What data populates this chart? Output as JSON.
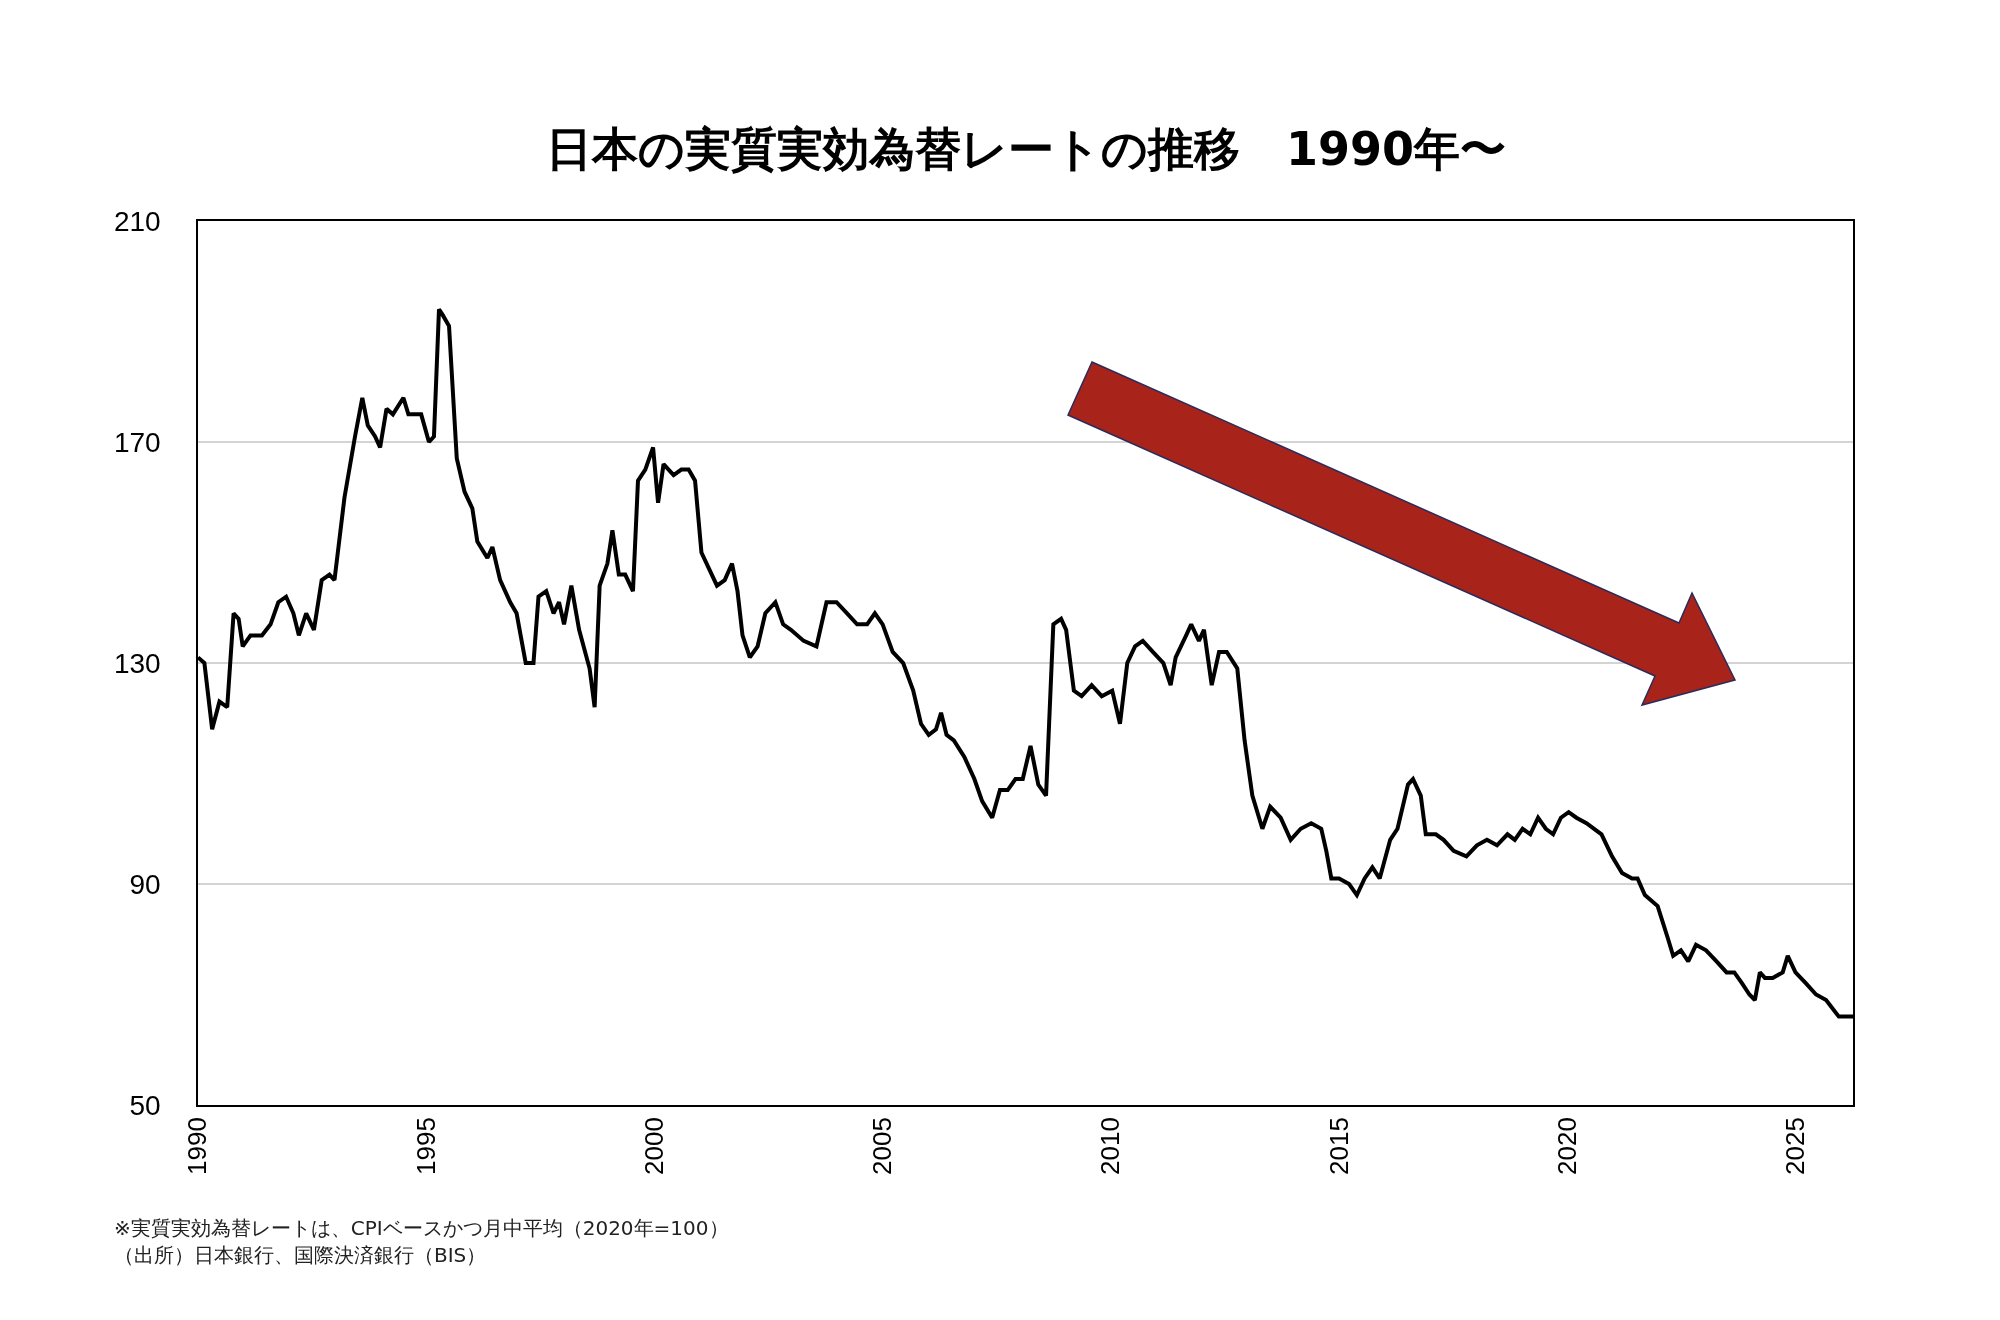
{
  "chart_data": {
    "type": "line",
    "title": "日本の実質実効為替レートの推移　1990年〜",
    "x": [
      1990.0,
      1990.14,
      1990.31,
      1990.47,
      1990.64,
      1990.78,
      1990.89,
      1990.98,
      1991.15,
      1991.4,
      1991.59,
      1991.76,
      1991.93,
      1992.09,
      1992.21,
      1992.37,
      1992.54,
      1992.71,
      1992.88,
      1992.99,
      1993.21,
      1993.44,
      1993.6,
      1993.72,
      1993.88,
      1993.99,
      1994.13,
      1994.27,
      1994.5,
      1994.61,
      1994.89,
      1995.06,
      1995.17,
      1995.28,
      1995.36,
      1995.5,
      1995.67,
      1995.84,
      1996.01,
      1996.12,
      1996.34,
      1996.45,
      1996.62,
      1996.84,
      1996.98,
      1997.18,
      1997.35,
      1997.46,
      1997.63,
      1997.79,
      1997.91,
      1998.02,
      1998.18,
      1998.35,
      1998.58,
      1998.69,
      1998.8,
      1998.97,
      1999.08,
      1999.22,
      1999.36,
      1999.53,
      1999.64,
      1999.8,
      1999.97,
      2000.08,
      2000.2,
      2000.42,
      2000.59,
      2000.75,
      2000.89,
      2001.03,
      2001.2,
      2001.37,
      2001.54,
      2001.7,
      2001.82,
      2001.93,
      2002.09,
      2002.26,
      2002.43,
      2002.65,
      2002.82,
      2002.99,
      2003.27,
      2003.55,
      2003.77,
      2003.99,
      2004.22,
      2004.44,
      2004.66,
      2004.83,
      2005.0,
      2005.22,
      2005.45,
      2005.67,
      2005.84,
      2006.01,
      2006.17,
      2006.28,
      2006.4,
      2006.56,
      2006.79,
      2007.01,
      2007.18,
      2007.4,
      2007.57,
      2007.74,
      2007.91,
      2008.07,
      2008.24,
      2008.41,
      2008.58,
      2008.74,
      2008.91,
      2009.02,
      2009.19,
      2009.36,
      2009.58,
      2009.8,
      2010.03,
      2010.2,
      2010.36,
      2010.53,
      2010.7,
      2010.92,
      2011.15,
      2011.31,
      2011.42,
      2011.65,
      2011.76,
      2011.93,
      2012.04,
      2012.21,
      2012.37,
      2012.54,
      2012.77,
      2012.93,
      2013.1,
      2013.32,
      2013.49,
      2013.72,
      2013.94,
      2014.16,
      2014.39,
      2014.61,
      2014.72,
      2014.83,
      2015.0,
      2015.22,
      2015.39,
      2015.56,
      2015.73,
      2015.89,
      2016.12,
      2016.28,
      2016.51,
      2016.62,
      2016.79,
      2016.9,
      2017.12,
      2017.29,
      2017.51,
      2017.79,
      2018.02,
      2018.24,
      2018.46,
      2018.69,
      2018.85,
      2019.02,
      2019.19,
      2019.36,
      2019.53,
      2019.69,
      2019.86,
      2020.03,
      2020.2,
      2020.42,
      2020.75,
      2020.98,
      2021.2,
      2021.42,
      2021.54,
      2021.7,
      2021.98,
      2022.21,
      2022.32,
      2022.49,
      2022.65,
      2022.82,
      2023.04,
      2023.27,
      2023.49,
      2023.66,
      2023.83,
      2023.99,
      2024.11,
      2024.22,
      2024.33,
      2024.5,
      2024.72,
      2024.83,
      2025.0,
      2025.23,
      2025.45,
      2025.67,
      2025.95,
      2026.26
    ],
    "values": [
      131,
      130,
      118,
      123,
      122,
      139,
      138,
      133,
      135,
      135,
      137,
      141,
      142,
      139,
      135,
      139,
      136,
      145,
      146,
      145,
      160,
      171,
      178,
      173,
      171,
      169,
      176,
      175,
      178,
      175,
      175,
      170,
      171,
      194,
      193,
      191,
      167,
      161,
      158,
      152,
      149,
      151,
      145,
      141,
      139,
      130,
      130,
      142,
      143,
      139,
      141,
      137,
      144,
      136,
      129,
      122,
      144,
      148,
      154,
      146,
      146,
      143,
      163,
      165,
      169,
      159,
      166,
      164,
      165,
      165,
      163,
      150,
      147,
      144,
      145,
      148,
      143,
      135,
      131,
      133,
      139,
      141,
      137,
      136,
      134,
      133,
      141,
      141,
      139,
      137,
      137,
      139,
      137,
      132,
      130,
      125,
      119,
      117,
      118,
      121,
      117,
      116,
      113,
      109,
      105,
      102,
      107,
      107,
      109,
      109,
      115,
      108,
      106,
      137,
      138,
      136,
      125,
      124,
      126,
      124,
      125,
      119,
      130,
      133,
      134,
      132,
      130,
      126,
      131,
      135,
      137,
      134,
      136,
      126,
      132,
      132,
      129,
      116,
      106,
      100,
      104,
      102,
      98,
      100,
      101,
      100,
      96,
      91,
      91,
      90,
      88,
      91,
      93,
      91,
      98,
      100,
      108,
      109,
      106,
      99,
      99,
      98,
      96,
      95,
      97,
      98,
      97,
      99,
      98,
      100,
      99,
      102,
      100,
      99,
      102,
      103,
      102,
      101,
      99,
      95,
      92,
      91,
      91,
      88,
      86,
      80,
      77,
      78,
      76,
      79,
      78,
      76,
      74,
      74,
      72,
      70,
      69,
      74,
      73,
      73,
      74,
      77,
      74,
      72,
      70,
      69,
      66,
      66
    ],
    "color": "#000000",
    "xlim": [
      1990,
      2026.26
    ],
    "xticks": [
      1990,
      1995,
      2000,
      2005,
      2010,
      2015,
      2020,
      2025
    ],
    "ylim": [
      50,
      210
    ],
    "yticks": [
      50,
      90,
      130,
      170,
      210
    ],
    "grid": "y",
    "marker": "none",
    "line_style": "solid",
    "annotations": [
      "※実質実効為替レートは、CPIベースかつ月中平均（2020年=100）",
      "（出所）日本銀行、国際決済銀行（BIS）"
    ]
  }
}
